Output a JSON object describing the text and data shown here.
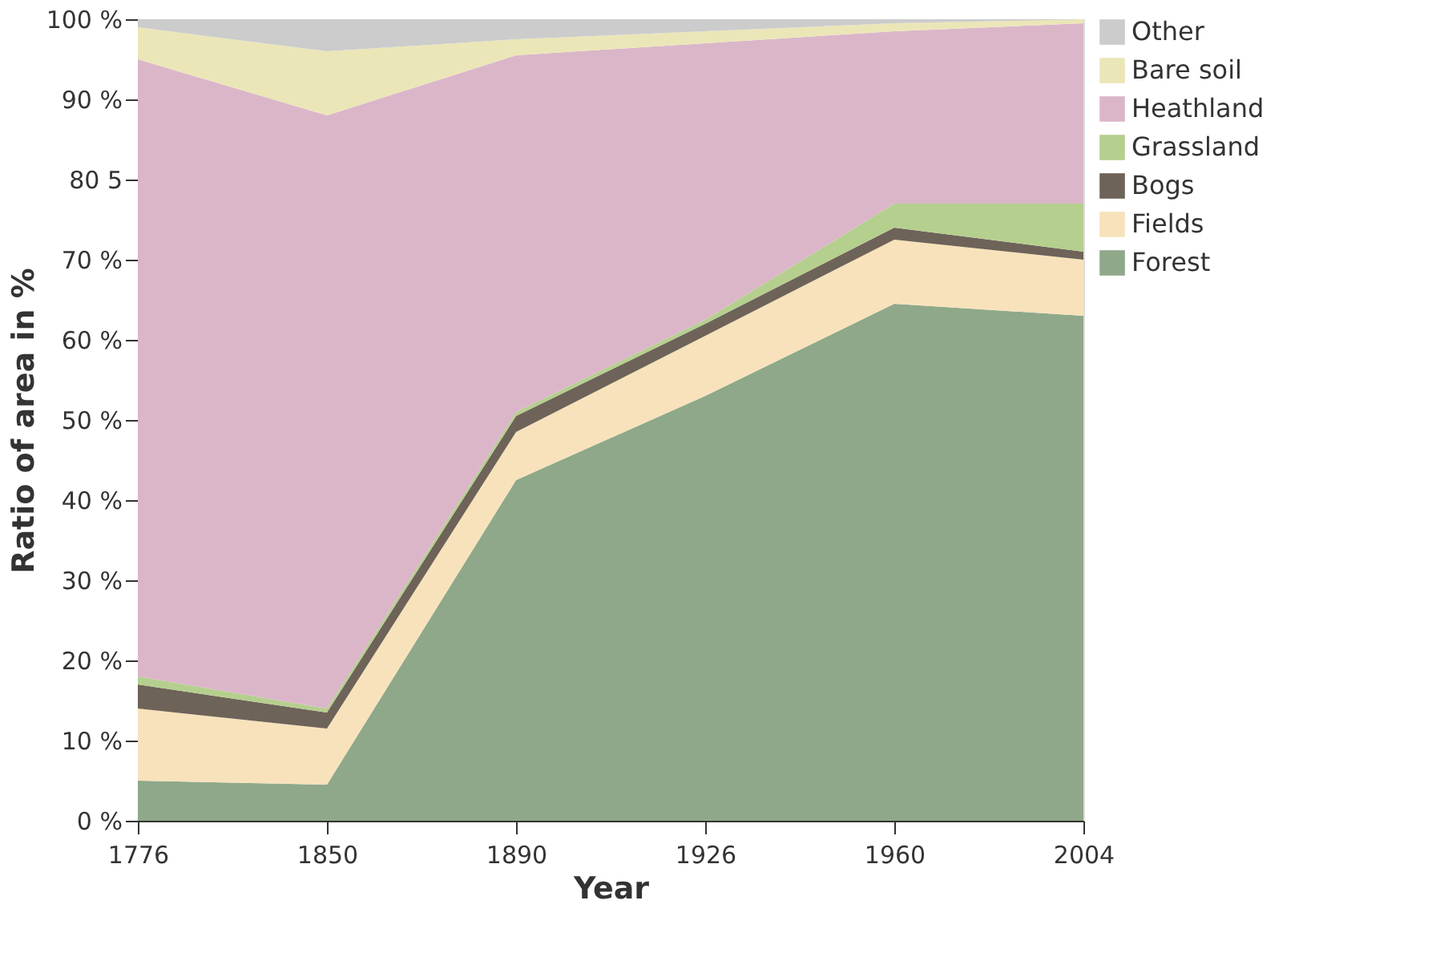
{
  "chart_data": {
    "type": "area",
    "stacked": true,
    "xlabel": "Year",
    "ylabel": "Ratio of area in %",
    "categories": [
      "1776",
      "1850",
      "1890",
      "1926",
      "1960",
      "2004"
    ],
    "series": [
      {
        "name": "Forest",
        "color": "#8fa88a",
        "values": [
          5,
          4.5,
          42.5,
          53,
          64.5,
          63
        ]
      },
      {
        "name": "Fields",
        "color": "#f7e2bb",
        "values": [
          9,
          7,
          6,
          7.5,
          8,
          7
        ]
      },
      {
        "name": "Bogs",
        "color": "#6e6358",
        "values": [
          3,
          2,
          2,
          1.5,
          1.5,
          1
        ]
      },
      {
        "name": "Grassland",
        "color": "#b5cf8e",
        "values": [
          1,
          0.5,
          0.5,
          0.5,
          3,
          6
        ]
      },
      {
        "name": "Heathland",
        "color": "#dbb6c9",
        "values": [
          77,
          74,
          44.5,
          34.5,
          21.5,
          22.5
        ]
      },
      {
        "name": "Bare soil",
        "color": "#ebe6b8",
        "values": [
          4,
          8,
          2,
          1.5,
          1,
          0.5
        ]
      },
      {
        "name": "Other",
        "color": "#cccccc",
        "values": [
          1,
          4,
          2.5,
          1.5,
          0.5,
          0
        ]
      }
    ],
    "ylim": [
      0,
      100
    ],
    "yticks": [
      {
        "value": 0,
        "label": "0 %"
      },
      {
        "value": 10,
        "label": "10 %"
      },
      {
        "value": 20,
        "label": "20 %"
      },
      {
        "value": 30,
        "label": "30 %"
      },
      {
        "value": 40,
        "label": "40 %"
      },
      {
        "value": 50,
        "label": "50 %"
      },
      {
        "value": 60,
        "label": "60 %"
      },
      {
        "value": 70,
        "label": "70 %"
      },
      {
        "value": 80,
        "label": "80 5"
      },
      {
        "value": 90,
        "label": "90 %"
      },
      {
        "value": 100,
        "label": "100 %"
      }
    ],
    "grid": false,
    "legend": "right"
  }
}
